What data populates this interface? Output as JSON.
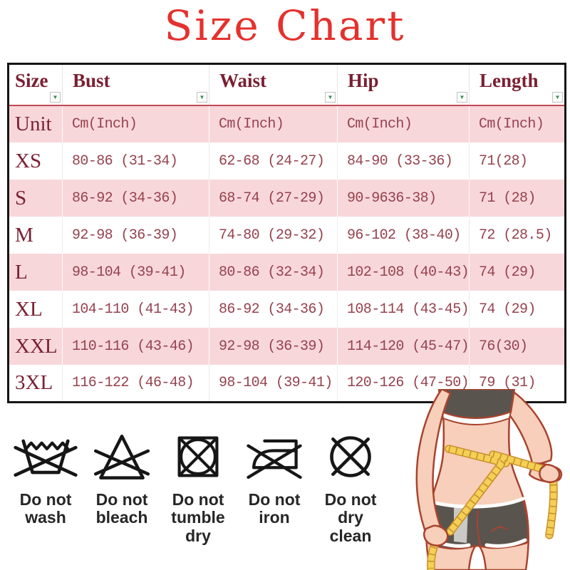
{
  "title": {
    "text": "Size Chart"
  },
  "chart_data": {
    "type": "table",
    "title": "Size Chart",
    "columns": [
      "Size",
      "Bust",
      "Waist",
      "Hip",
      "Length"
    ],
    "rows": [
      [
        "Unit",
        "Cm(Inch)",
        "Cm(Inch)",
        "Cm(Inch)",
        "Cm(Inch)"
      ],
      [
        "XS",
        "80-86 (31-34)",
        "62-68 (24-27)",
        "84-90 (33-36)",
        "71(28)"
      ],
      [
        "S",
        "86-92 (34-36)",
        "68-74 (27-29)",
        "90-9636-38)",
        "71 (28)"
      ],
      [
        "M",
        "92-98 (36-39)",
        "74-80 (29-32)",
        "96-102 (38-40)",
        "72 (28.5)"
      ],
      [
        "L",
        "98-104 (39-41)",
        "80-86 (32-34)",
        "102-108 (40-43)",
        "74 (29)"
      ],
      [
        "XL",
        "104-110 (41-43)",
        "86-92 (34-36)",
        "108-114 (43-45)",
        "74 (29)"
      ],
      [
        "XXL",
        "110-116 (43-46)",
        "92-98 (36-39)",
        "114-120 (45-47)",
        "76(30)"
      ],
      [
        "3XL",
        "116-122 (46-48)",
        "98-104 (39-41)",
        "120-126 (47-50)",
        "79 (31)"
      ]
    ]
  },
  "table": {
    "filter_arrow_glyph": "▼"
  },
  "care_instructions": [
    {
      "icon": "do-not-wash-icon",
      "label": "Do not wash"
    },
    {
      "icon": "do-not-bleach-icon",
      "label": "Do not bleach"
    },
    {
      "icon": "do-not-tumble-dry-icon",
      "label": "Do not tumble dry"
    },
    {
      "icon": "do-not-iron-icon",
      "label": "Do not iron"
    },
    {
      "icon": "do-not-dry-clean-icon",
      "label": "Do not dry clean"
    }
  ],
  "colors": {
    "title_red": "#e5312d",
    "header_maroon": "#7a1f31",
    "cell_maroon": "#95424e",
    "row_pink": "#f8d7db",
    "header_rule_red": "#c24a52",
    "table_border": "#151515",
    "filter_arrow_green": "#2f8f4e",
    "care_icon_black": "#161616",
    "care_label_gray": "#262626",
    "tape_yellow": "#f4d054",
    "skin_tone": "#f7cfba",
    "garment_gray": "#5a544f",
    "outline_red": "#a8432e"
  }
}
